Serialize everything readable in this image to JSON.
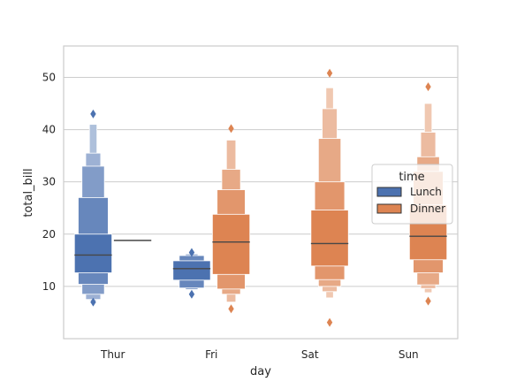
{
  "chart_data": {
    "type": "boxen",
    "xlabel": "day",
    "ylabel": "total_bill",
    "categories": [
      "Thur",
      "Fri",
      "Sat",
      "Sun"
    ],
    "ylim": [
      0,
      56
    ],
    "yticks": [
      10,
      20,
      30,
      40,
      50
    ],
    "grid": true,
    "legend": {
      "title": "time",
      "placement": "center-right",
      "entries": [
        {
          "name": "Lunch",
          "color": "#4c72b0"
        },
        {
          "name": "Dinner",
          "color": "#dd8452"
        }
      ]
    },
    "series": [
      {
        "name": "Lunch",
        "color": "#4c72b0",
        "boxes": [
          {
            "category": "Thur",
            "median": 16.0,
            "levels": [
              [
                12.6,
                20.0
              ],
              [
                10.4,
                27.0
              ],
              [
                8.5,
                33.0
              ],
              [
                7.5,
                35.5
              ],
              [
                7.3,
                41.0
              ]
            ],
            "outliers": [
              7.0,
              43.0
            ]
          },
          {
            "category": "Fri",
            "median": 13.4,
            "levels": [
              [
                11.2,
                14.9
              ],
              [
                9.7,
                15.9
              ],
              [
                9.4,
                16.2
              ]
            ],
            "outliers": [
              8.5,
              16.5
            ]
          }
        ]
      },
      {
        "name": "Dinner",
        "color": "#dd8452",
        "boxes": [
          {
            "category": "Thur",
            "median": 18.8,
            "levels": [
              [
                18.8,
                18.8
              ]
            ],
            "outliers": []
          },
          {
            "category": "Fri",
            "median": 18.5,
            "levels": [
              [
                12.3,
                23.8
              ],
              [
                9.5,
                28.5
              ],
              [
                8.5,
                32.4
              ],
              [
                7.0,
                38.0
              ]
            ],
            "outliers": [
              5.7,
              40.2
            ]
          },
          {
            "category": "Sat",
            "median": 18.2,
            "levels": [
              [
                13.9,
                24.6
              ],
              [
                11.3,
                30.0
              ],
              [
                10.0,
                38.3
              ],
              [
                9.0,
                44.0
              ],
              [
                7.8,
                48.0
              ]
            ],
            "outliers": [
              3.1,
              50.8
            ]
          },
          {
            "category": "Sun",
            "median": 19.6,
            "levels": [
              [
                15.1,
                25.6
              ],
              [
                12.6,
                32.0
              ],
              [
                10.3,
                34.8
              ],
              [
                9.6,
                39.5
              ],
              [
                8.8,
                45.0
              ]
            ],
            "outliers": [
              7.2,
              48.2
            ]
          }
        ]
      }
    ]
  }
}
